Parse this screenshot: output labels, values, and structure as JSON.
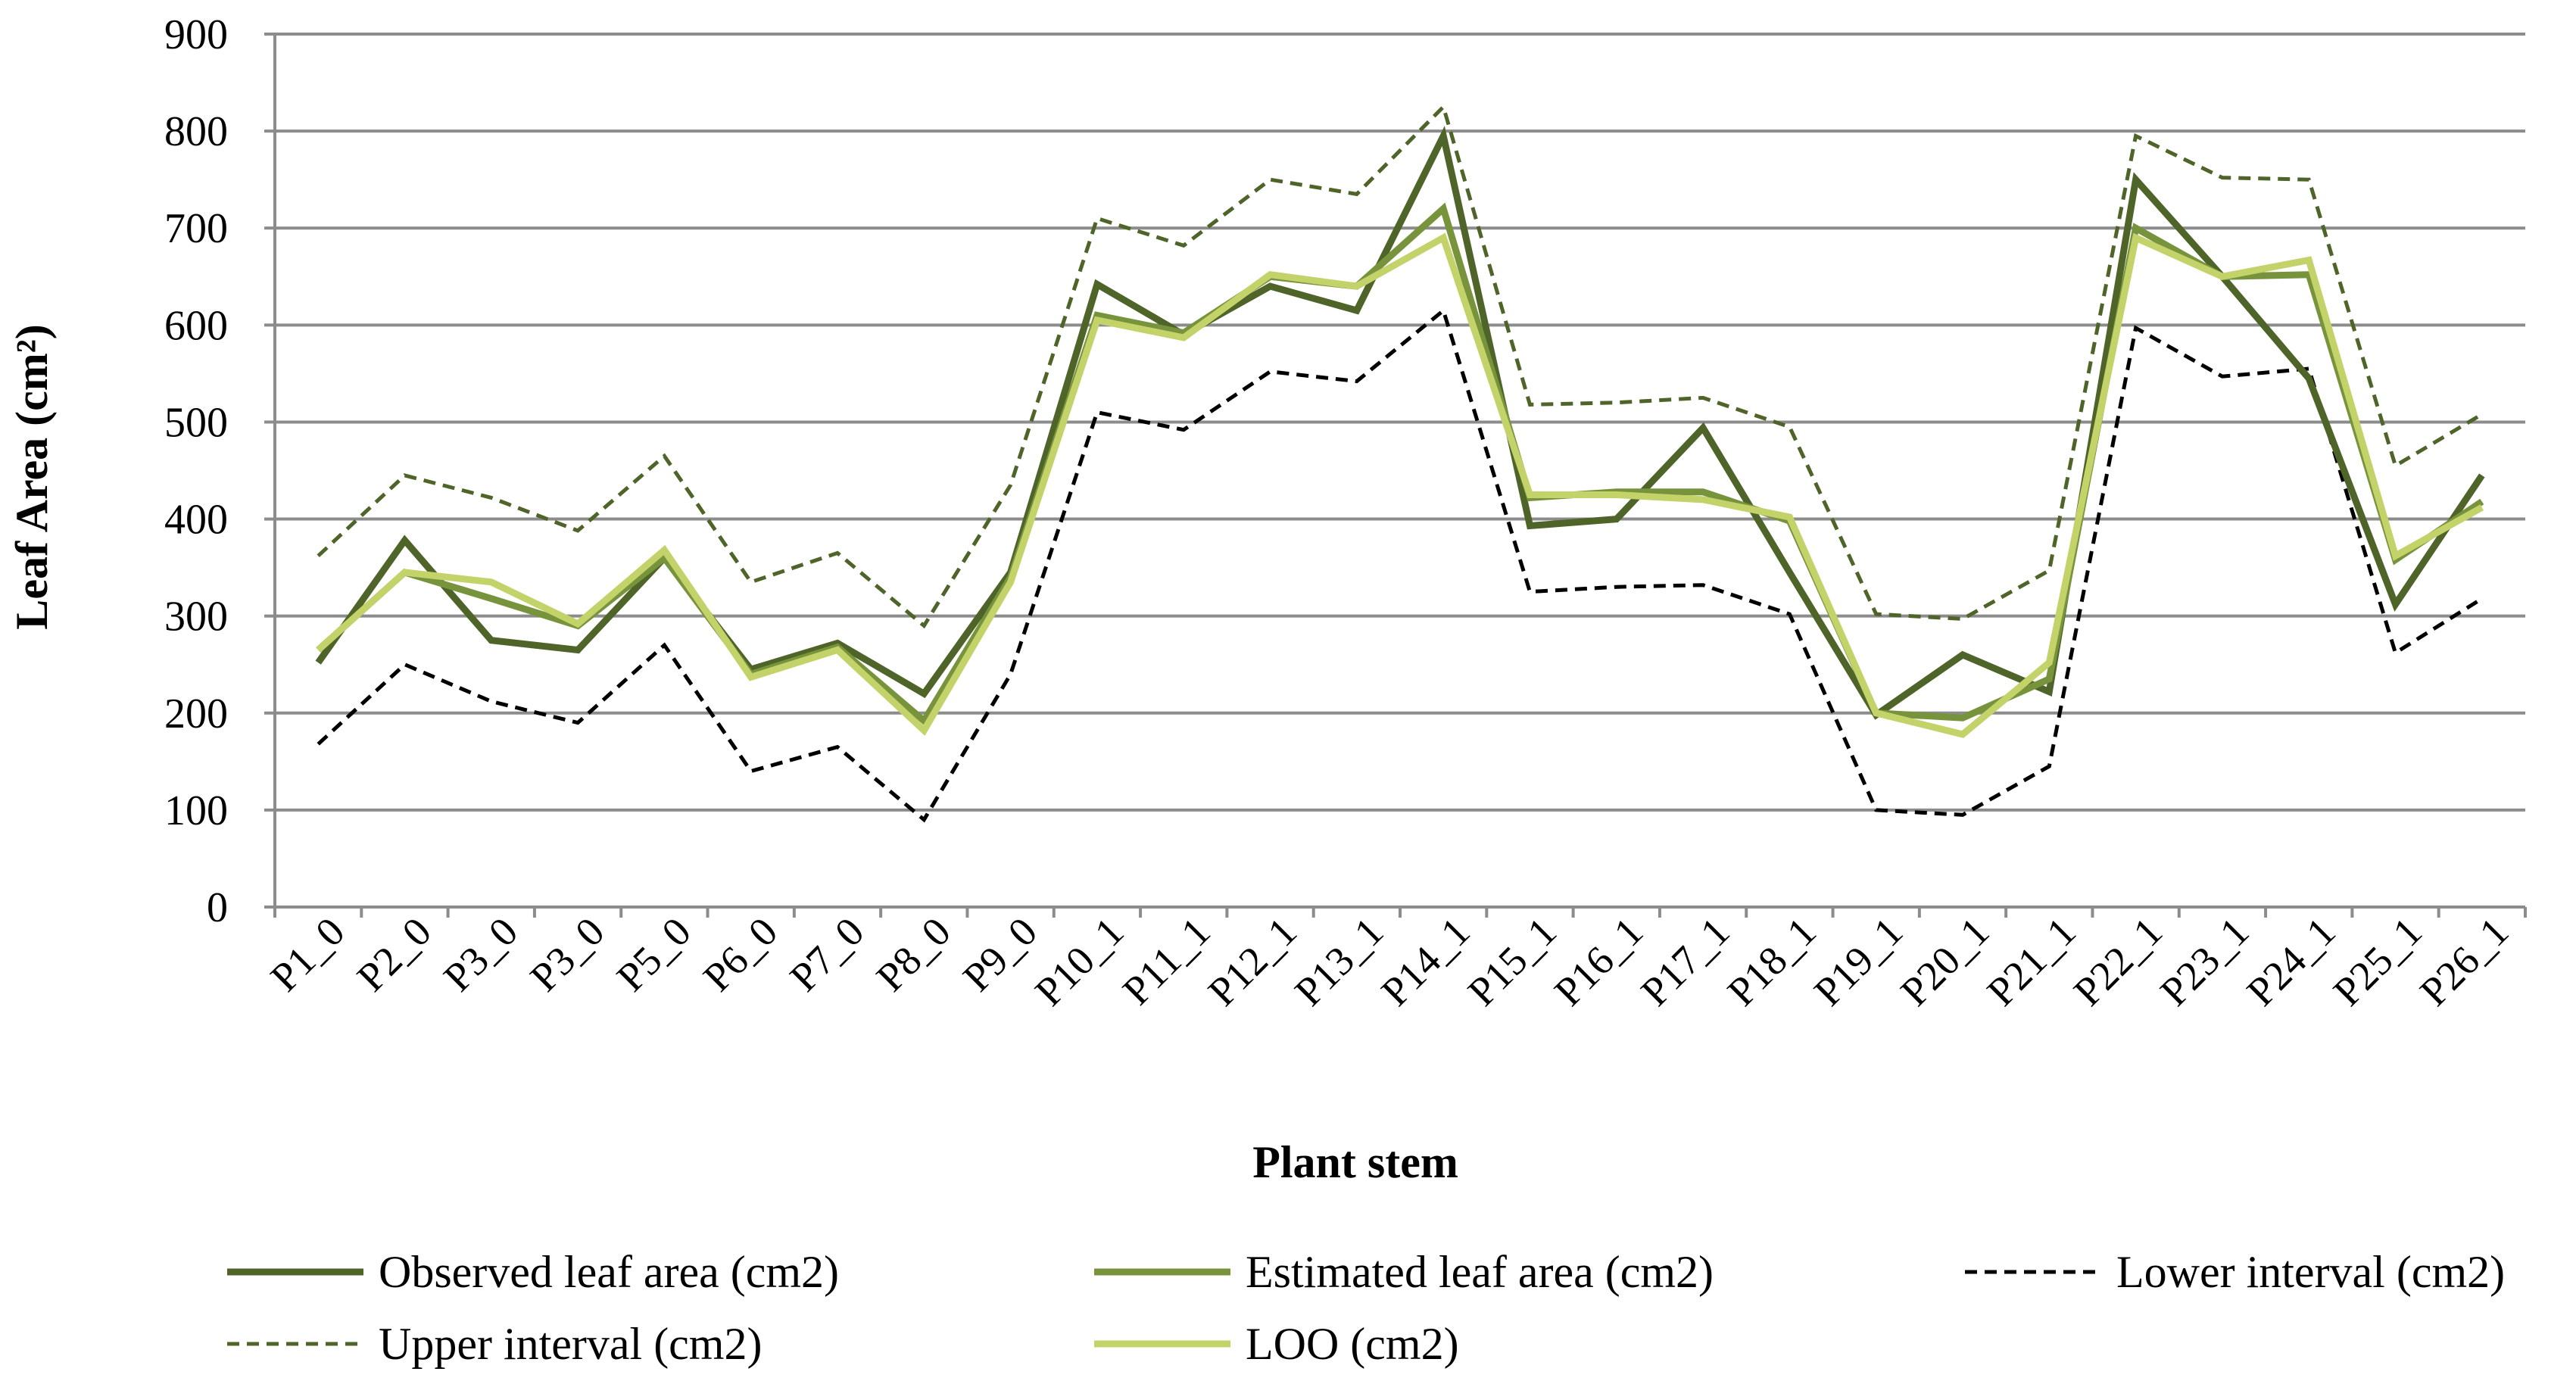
{
  "chart_data": {
    "type": "line",
    "xlabel": "Plant stem",
    "ylabel": "Leaf Area (cm²)",
    "ylim": [
      0,
      900
    ],
    "yticks": [
      0,
      100,
      200,
      300,
      400,
      500,
      600,
      700,
      800,
      900
    ],
    "grid": "horizontal",
    "legend_position": "bottom",
    "categories": [
      "P1_0",
      "P2_0",
      "P3_0",
      "P3_0",
      "P5_0",
      "P6_0",
      "P7_0",
      "P8_0",
      "P9_0",
      "P10_1",
      "P11_1",
      "P12_1",
      "P13_1",
      "P14_1",
      "P15_1",
      "P16_1",
      "P17_1",
      "P18_1",
      "P19_1",
      "P20_1",
      "P21_1",
      "P22_1",
      "P23_1",
      "P24_1",
      "P25_1",
      "P26_1"
    ],
    "series": [
      {
        "name": "Observed leaf area (cm2)",
        "color": "#4e6428",
        "dash": "solid",
        "values": [
          252,
          378,
          275,
          265,
          360,
          245,
          272,
          220,
          345,
          642,
          590,
          640,
          615,
          795,
          393,
          400,
          494,
          345,
          198,
          260,
          222,
          750,
          650,
          545,
          312,
          445
        ]
      },
      {
        "name": "Estimated leaf area (cm2)",
        "color": "#77933c",
        "dash": "solid",
        "values": [
          265,
          345,
          318,
          290,
          360,
          240,
          268,
          192,
          340,
          610,
          592,
          650,
          640,
          720,
          422,
          428,
          428,
          398,
          200,
          195,
          235,
          700,
          650,
          652,
          358,
          418
        ]
      },
      {
        "name": "Lower interval (cm2)",
        "color": "#000000",
        "dash": "dashed",
        "values": [
          168,
          250,
          212,
          190,
          270,
          140,
          165,
          90,
          240,
          510,
          492,
          552,
          542,
          615,
          325,
          330,
          332,
          302,
          100,
          95,
          145,
          597,
          547,
          555,
          262,
          318
        ]
      },
      {
        "name": "Upper interval (cm2)",
        "color": "#4e6428",
        "dash": "dashed",
        "values": [
          362,
          445,
          422,
          388,
          465,
          335,
          365,
          290,
          435,
          710,
          682,
          750,
          735,
          825,
          518,
          520,
          525,
          495,
          302,
          297,
          347,
          795,
          752,
          750,
          455,
          508
        ]
      },
      {
        "name": "LOO (cm2)",
        "color": "#c3d369",
        "dash": "solid",
        "values": [
          265,
          345,
          335,
          292,
          368,
          237,
          265,
          182,
          335,
          605,
          587,
          652,
          640,
          690,
          425,
          425,
          420,
          402,
          200,
          178,
          252,
          690,
          650,
          667,
          362,
          412
        ]
      }
    ]
  }
}
